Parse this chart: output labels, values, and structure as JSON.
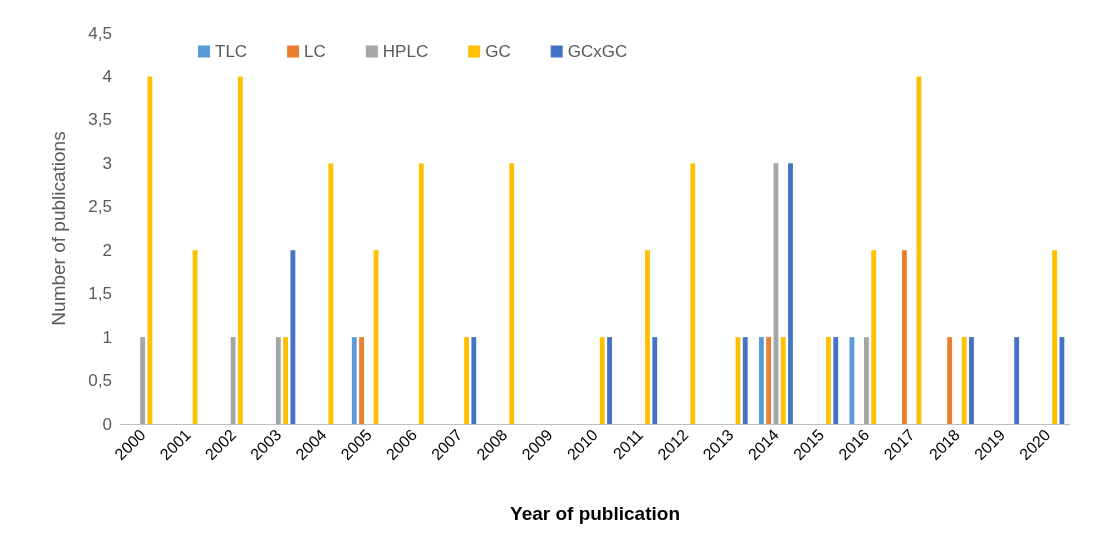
{
  "chart_data": {
    "type": "bar",
    "xlabel": "Year of publication",
    "ylabel": "Number of publications",
    "categories": [
      "2000",
      "2001",
      "2002",
      "2003",
      "2004",
      "2005",
      "2006",
      "2007",
      "2008",
      "2009",
      "2010",
      "2011",
      "2012",
      "2013",
      "2014",
      "2015",
      "2016",
      "2017",
      "2018",
      "2019",
      "2020"
    ],
    "series": [
      {
        "name": "TLC",
        "color": "#5b9bd5",
        "values": [
          0,
          0,
          0,
          0,
          0,
          1,
          0,
          0,
          0,
          0,
          0,
          0,
          0,
          0,
          1,
          0,
          1,
          0,
          0,
          0,
          0
        ]
      },
      {
        "name": "LC",
        "color": "#ed7d31",
        "values": [
          0,
          0,
          0,
          0,
          0,
          1,
          0,
          0,
          0,
          0,
          0,
          0,
          0,
          0,
          1,
          0,
          0,
          2,
          1,
          0,
          0
        ]
      },
      {
        "name": "HPLC",
        "color": "#a5a5a5",
        "values": [
          1,
          0,
          1,
          1,
          0,
          0,
          0,
          0,
          0,
          0,
          0,
          0,
          0,
          0,
          3,
          0,
          1,
          0,
          0,
          0,
          0
        ]
      },
      {
        "name": "GC",
        "color": "#ffc000",
        "values": [
          4,
          2,
          4,
          1,
          3,
          2,
          3,
          1,
          3,
          0,
          1,
          2,
          3,
          1,
          1,
          1,
          2,
          4,
          1,
          0,
          2
        ]
      },
      {
        "name": "GCxGC",
        "color": "#4472c4",
        "values": [
          0,
          0,
          0,
          2,
          0,
          0,
          0,
          1,
          0,
          0,
          1,
          1,
          0,
          1,
          3,
          1,
          0,
          0,
          1,
          1,
          1
        ]
      }
    ],
    "ylim": [
      0,
      4.5
    ],
    "yticks": [
      0,
      {
        "value": 0.5,
        "label": "0,5"
      },
      1,
      {
        "value": 1.5,
        "label": "1,5"
      },
      2,
      {
        "value": 2.5,
        "label": "2,5"
      },
      3,
      {
        "value": 3.5,
        "label": "3,5"
      },
      4,
      {
        "value": 4.5,
        "label": "4,5"
      }
    ],
    "grid": false,
    "legend": "top left"
  }
}
